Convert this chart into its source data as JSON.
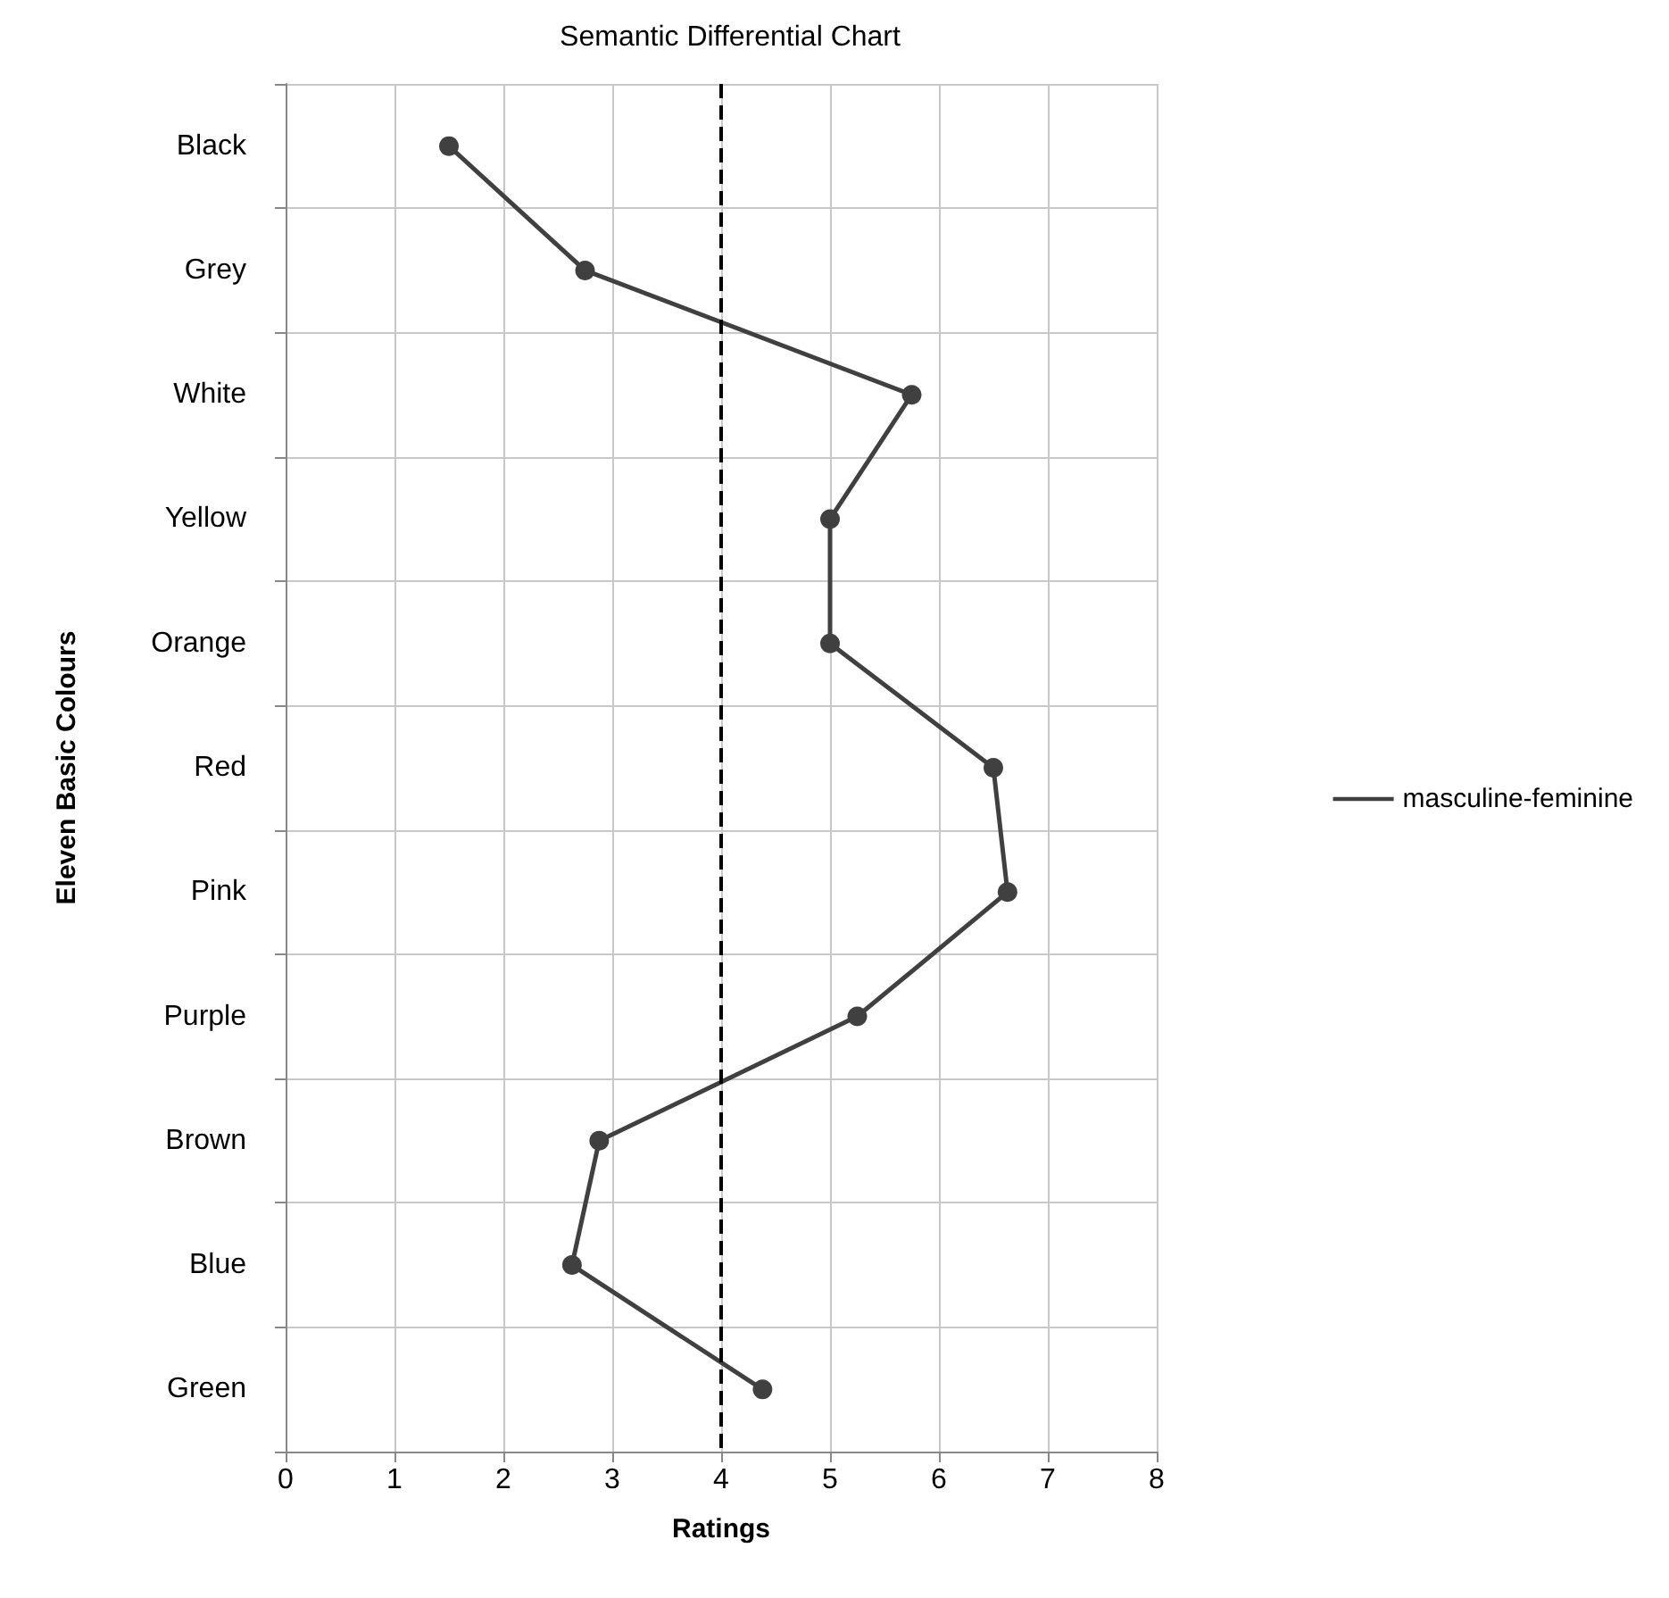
{
  "chart_data": {
    "type": "line",
    "orientation": "horizontal",
    "title": "Semantic Differential Chart",
    "xlabel": "Ratings",
    "ylabel": "Eleven Basic Colours",
    "categories": [
      "Black",
      "Grey",
      "White",
      "Yellow",
      "Orange",
      "Red",
      "Pink",
      "Purple",
      "Brown",
      "Blue",
      "Green"
    ],
    "series": [
      {
        "name": "masculine-feminine",
        "color": "#404040",
        "values": [
          1.5,
          2.75,
          5.75,
          5,
          5,
          6.5,
          6.63,
          5.25,
          2.88,
          2.63,
          4.38
        ]
      }
    ],
    "xlim": [
      0,
      8
    ],
    "xticks": [
      0,
      1,
      2,
      3,
      4,
      5,
      6,
      7,
      8
    ],
    "ref_lines": [
      {
        "axis": "x",
        "value": 4,
        "color": "#000000",
        "line_style": "dashed"
      }
    ],
    "grid": true,
    "legend": "right",
    "marker": "circle",
    "line_style": "solid"
  }
}
